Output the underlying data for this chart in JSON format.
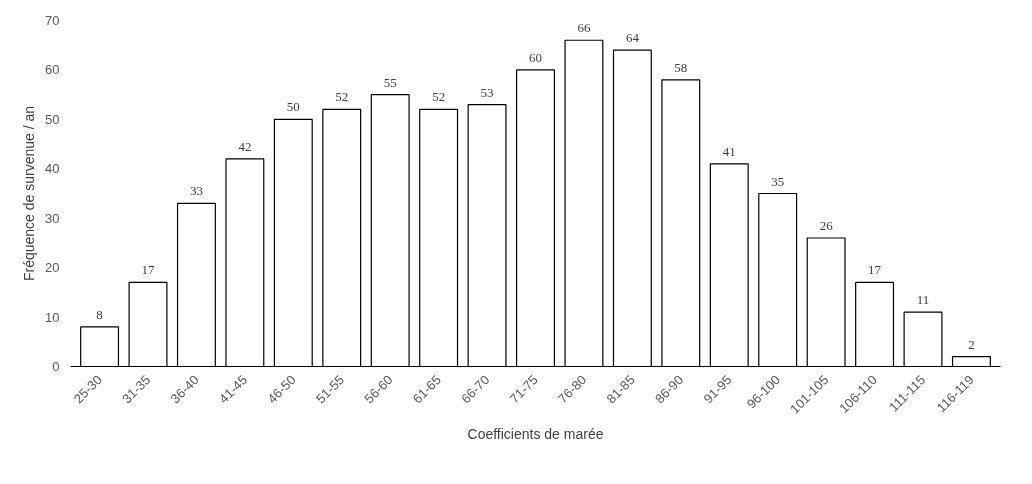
{
  "chart_data": {
    "type": "bar",
    "xlabel": "Coefficients de marée",
    "ylabel": "Fréquence de survenue / an",
    "categories": [
      "25-30",
      "31-35",
      "36-40",
      "41-45",
      "46-50",
      "51-55",
      "56-60",
      "61-65",
      "66-70",
      "71-75",
      "76-80",
      "81-85",
      "86-90",
      "91-95",
      "96-100",
      "101-105",
      "106-110",
      "111-115",
      "116-119"
    ],
    "values": [
      8,
      17,
      33,
      42,
      50,
      52,
      55,
      52,
      53,
      60,
      66,
      64,
      58,
      41,
      35,
      26,
      17,
      11,
      2
    ],
    "color": "#ffffff",
    "ylim": [
      0,
      70
    ],
    "yticks": [
      0,
      10,
      20,
      30,
      40,
      50,
      60,
      70
    ],
    "grid": false,
    "data_labels": true
  }
}
